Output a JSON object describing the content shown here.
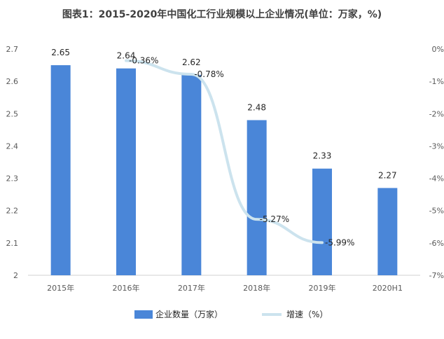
{
  "chart_data": {
    "type": "bar",
    "title": "图表1：2015-2020年中国化工行业规模以上企业情况(单位：万家，%)",
    "categories": [
      "2015年",
      "2016年",
      "2017年",
      "2018年",
      "2019年",
      "2020H1"
    ],
    "series": [
      {
        "name": "企业数量（万家）",
        "type": "bar",
        "axis": "left",
        "values": [
          2.65,
          2.64,
          2.62,
          2.48,
          2.33,
          2.27
        ],
        "labels": [
          "2.65",
          "2.64",
          "2.62",
          "2.48",
          "2.33",
          "2.27"
        ],
        "color": "#4a86d8"
      },
      {
        "name": "增速（%）",
        "type": "line",
        "axis": "right",
        "values": [
          null,
          -0.36,
          -0.78,
          -5.27,
          -5.99,
          null
        ],
        "labels": [
          "",
          "-0.36%",
          "-0.78%",
          "-5.27%",
          "-5.99%",
          ""
        ],
        "color": "#cce3ee"
      }
    ],
    "ylim_left": [
      2,
      2.7
    ],
    "ylim_right": [
      -7,
      0
    ],
    "yticks_left": [
      "2",
      "2.1",
      "2.2",
      "2.3",
      "2.4",
      "2.5",
      "2.6",
      "2.7"
    ],
    "yticks_right": [
      "0%",
      "-1%",
      "-2%",
      "-3%",
      "-4%",
      "-5%",
      "-6%",
      "-7%"
    ],
    "grid": false,
    "legend_position": "bottom"
  }
}
